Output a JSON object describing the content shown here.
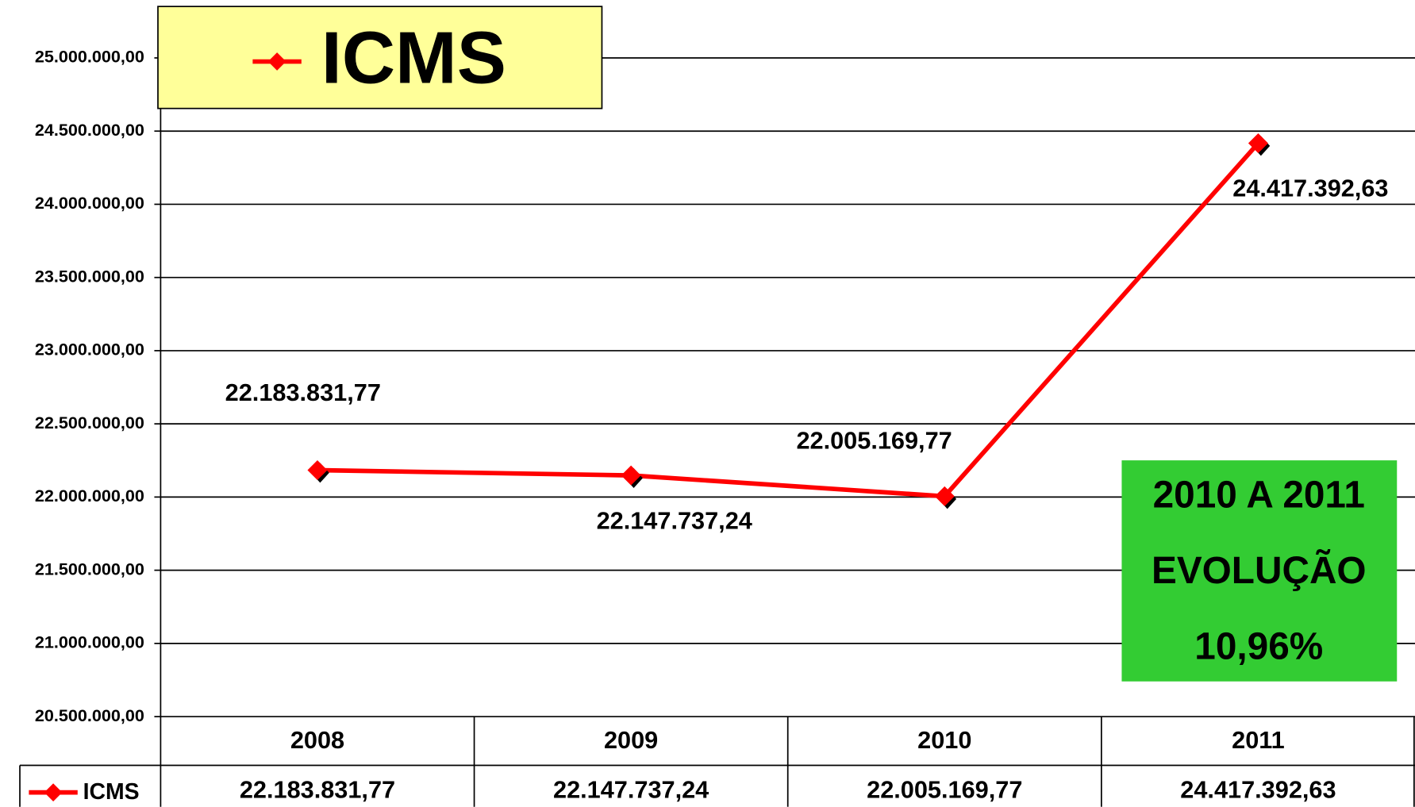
{
  "chart_data": {
    "type": "line",
    "categories": [
      "2008",
      "2009",
      "2010",
      "2011"
    ],
    "series": [
      {
        "name": "ICMS",
        "color": "#ff0000",
        "values": [
          22183831.77,
          22147737.24,
          22005169.77,
          24417392.63
        ],
        "value_labels": [
          "22.183.831,77",
          "22.147.737,24",
          "22.005.169,77",
          "24.417.392,63"
        ]
      }
    ],
    "ylim": [
      20500000,
      25000000
    ],
    "yticks": [
      {
        "value": 20500000,
        "label": "20.500.000,00"
      },
      {
        "value": 21000000,
        "label": "21.000.000,00"
      },
      {
        "value": 21500000,
        "label": "21.500.000,00"
      },
      {
        "value": 22000000,
        "label": "22.000.000,00"
      },
      {
        "value": 22500000,
        "label": "22.500.000,00"
      },
      {
        "value": 23000000,
        "label": "23.000.000,00"
      },
      {
        "value": 23500000,
        "label": "23.500.000,00"
      },
      {
        "value": 24000000,
        "label": "24.000.000,00"
      },
      {
        "value": 24500000,
        "label": "24.500.000,00"
      },
      {
        "value": 25000000,
        "label": "25.000.000,00"
      }
    ],
    "grid": true,
    "legend": "top-left",
    "annotations": [
      "2010 A 2011",
      "EVOLUÇÃO",
      "10,96%"
    ],
    "annotation_color": "#33cc33",
    "legend_color": "#ffff99"
  }
}
